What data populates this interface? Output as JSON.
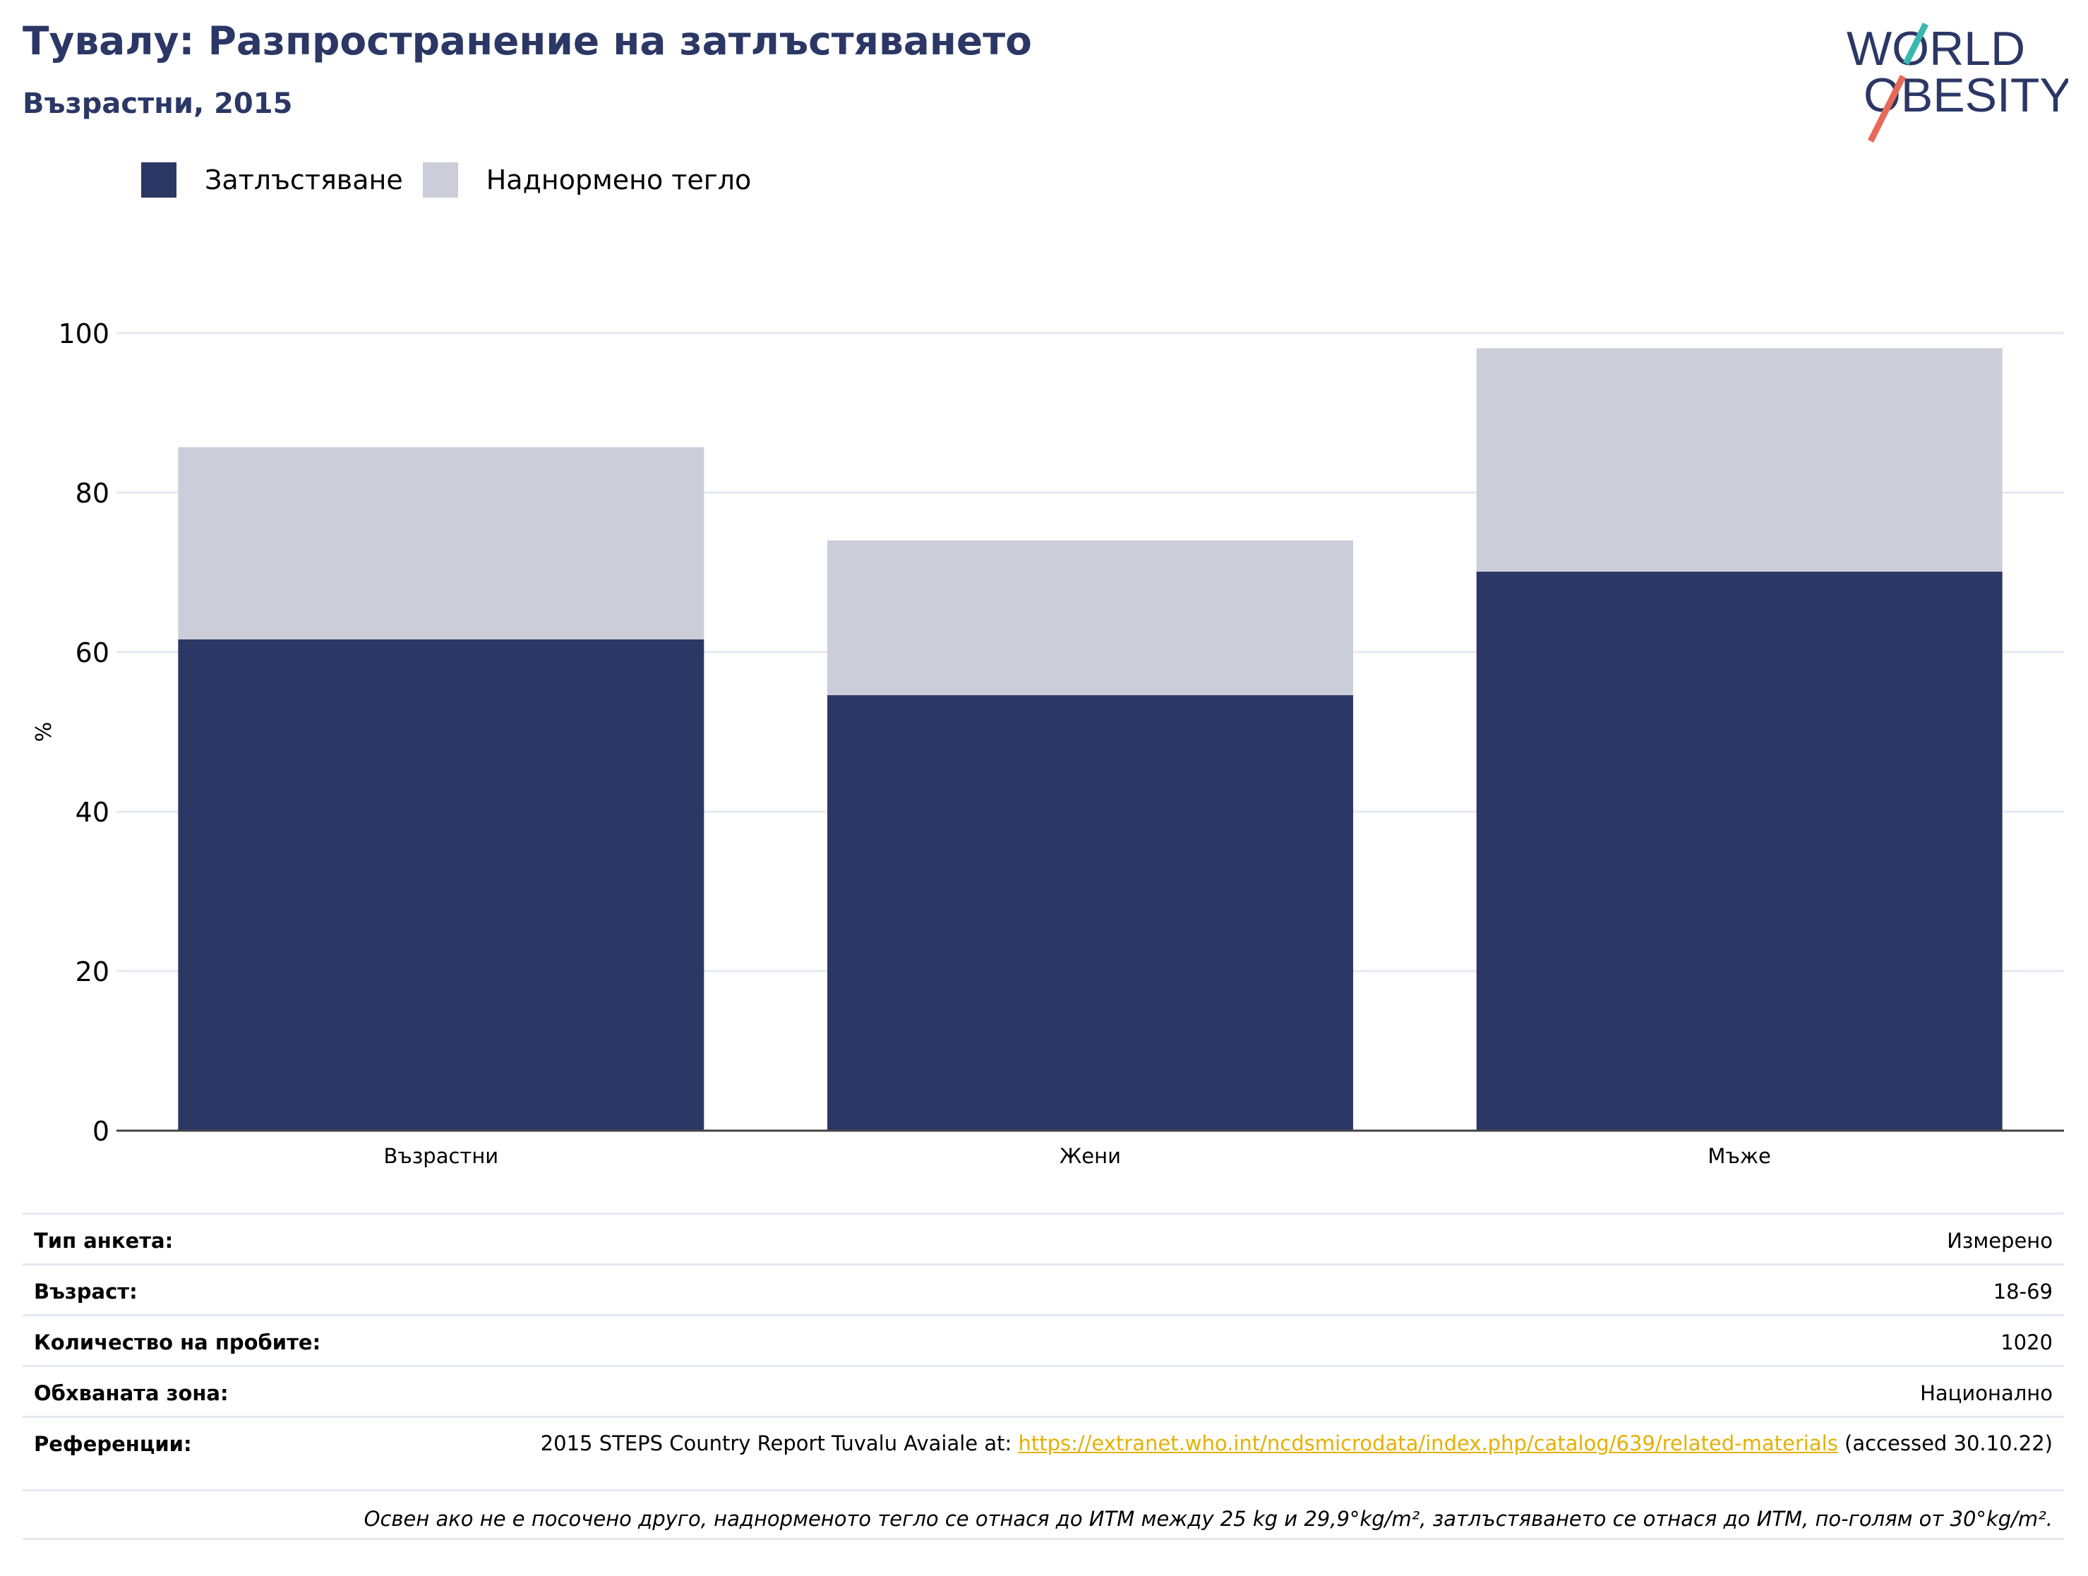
{
  "header": {
    "title": "Тувалу: Разпространение на затлъстяването",
    "subtitle": "Възрастни, 2015"
  },
  "logo": {
    "line1": "WORLD",
    "line2": "OBESITY",
    "icon": "world-obesity-logo"
  },
  "colors": {
    "obesity": "#2b3765",
    "overweight": "#cbcdd9",
    "accent_teal": "#3ab7b0",
    "accent_red": "#e8695a",
    "link": "#e5b000"
  },
  "legend": [
    {
      "label": "Затлъстяване",
      "color": "#2b3765"
    },
    {
      "label": "Наднормено тегло",
      "color": "#cbcdd9"
    }
  ],
  "chart_data": {
    "type": "bar",
    "stacked": true,
    "categories": [
      "Възрастни",
      "Жени",
      "Мъже"
    ],
    "series": [
      {
        "name": "Затлъстяване",
        "values": [
          61.6,
          54.6,
          70.1
        ]
      },
      {
        "name": "Наднормено тегло",
        "values": [
          24.1,
          19.4,
          28.0
        ]
      }
    ],
    "ylabel": "%",
    "ylim": [
      0,
      100
    ],
    "yticks": [
      0,
      20,
      40,
      60,
      80,
      100
    ],
    "grid": true,
    "legend_position": "top-left"
  },
  "info": {
    "survey_type_label": "Тип анкета:",
    "survey_type_value": "Измерено",
    "age_label": "Възраст:",
    "age_value": "18-69",
    "sample_label": "Количество на пробите:",
    "sample_value": "1020",
    "area_label": "Обхваната зона:",
    "area_value": "Национално",
    "references_label": "Референции:",
    "references_prefix": "2015 STEPS Country Report Tuvalu Avaiale at: ",
    "references_link": "https://extranet.who.int/ncdsmicrodata/index.php/catalog/639/related-materials",
    "references_suffix": " (accessed 30.10.22)",
    "note": "Освен ако не е посочено друго, наднорменото тегло се отнася до ИТМ между 25 kg и 29,9°kg/m², затлъстяването се отнася до ИТМ, по-голям от 30°kg/m²."
  }
}
